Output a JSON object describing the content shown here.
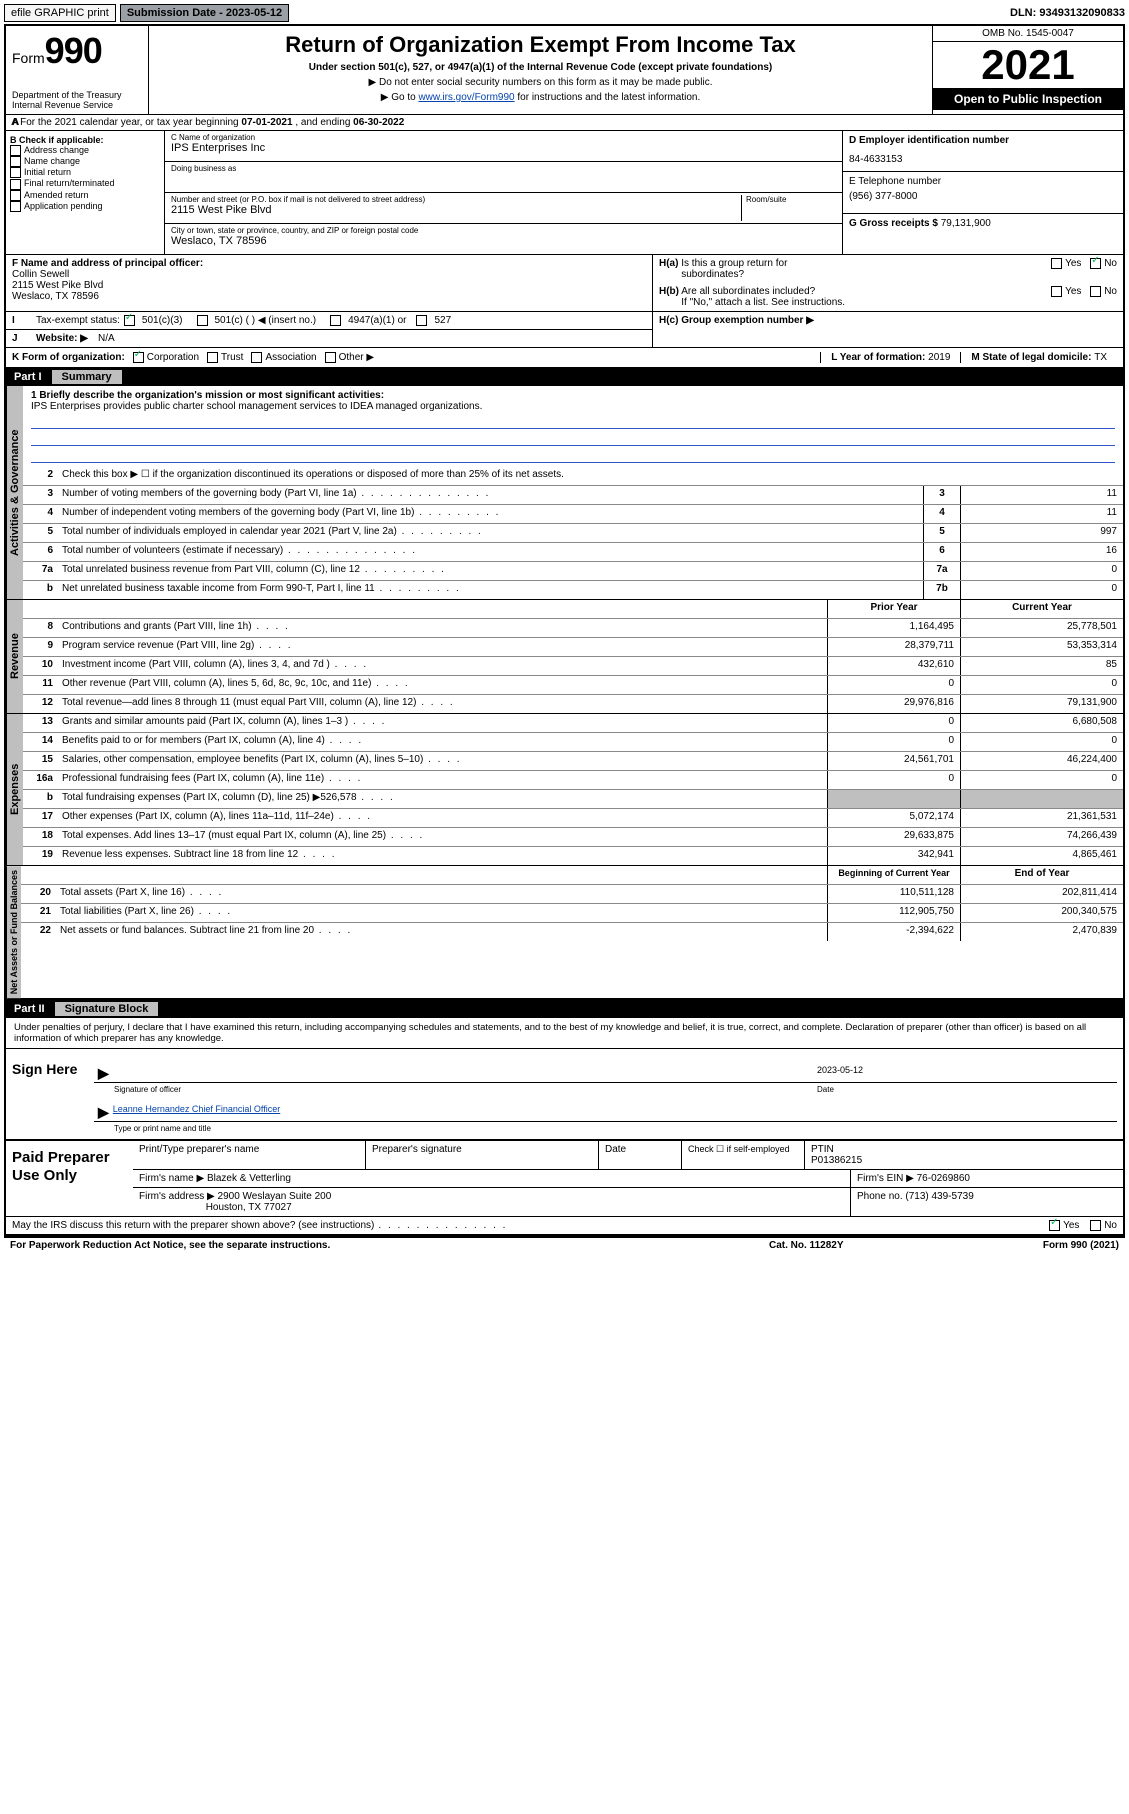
{
  "topbar": {
    "efile": "efile GRAPHIC print",
    "submission_label": "Submission Date - ",
    "submission_date": "2023-05-12",
    "dln_label": "DLN: ",
    "dln": "93493132090833"
  },
  "header": {
    "form_prefix": "Form",
    "form_number": "990",
    "dept": "Department of the Treasury\nInternal Revenue Service",
    "title": "Return of Organization Exempt From Income Tax",
    "subtitle": "Under section 501(c), 527, or 4947(a)(1) of the Internal Revenue Code (except private foundations)",
    "note1": "▶ Do not enter social security numbers on this form as it may be made public.",
    "note2_pre": "▶ Go to ",
    "note2_link": "www.irs.gov/Form990",
    "note2_post": " for instructions and the latest information.",
    "omb": "OMB No. 1545-0047",
    "year": "2021",
    "inspection": "Open to Public Inspection"
  },
  "period": {
    "label_a": "A For the 2021 calendar year, or tax year beginning ",
    "begin": "07-01-2021",
    "mid": " , and ending ",
    "end": "06-30-2022"
  },
  "boxB": {
    "label": "B Check if applicable:",
    "items": [
      "Address change",
      "Name change",
      "Initial return",
      "Final return/terminated",
      "Amended return",
      "Application pending"
    ]
  },
  "boxC": {
    "name_label": "C Name of organization",
    "name": "IPS Enterprises Inc",
    "dba_label": "Doing business as",
    "dba": "",
    "addr_label": "Number and street (or P.O. box if mail is not delivered to street address)",
    "room_label": "Room/suite",
    "addr": "2115 West Pike Blvd",
    "city_label": "City or town, state or province, country, and ZIP or foreign postal code",
    "city": "Weslaco, TX  78596"
  },
  "boxD": {
    "label": "D Employer identification number",
    "value": "84-4633153"
  },
  "boxE": {
    "label": "E Telephone number",
    "value": "(956) 377-8000"
  },
  "boxG": {
    "label": "G Gross receipts $ ",
    "value": "79,131,900"
  },
  "boxF": {
    "label": "F Name and address of principal officer:",
    "name": "Collin Sewell",
    "addr1": "2115 West Pike Blvd",
    "addr2": "Weslaco, TX  78596"
  },
  "boxH": {
    "a_label": "H(a) Is this a group return for subordinates?",
    "a_yes": "Yes",
    "a_no": "No",
    "b_label": "H(b) Are all subordinates included?",
    "b_note": "If \"No,\" attach a list. See instructions.",
    "c_label": "H(c) Group exemption number ▶"
  },
  "lineI": {
    "label": "Tax-exempt status:",
    "opts": [
      "501(c)(3)",
      "501(c) (  ) ◀ (insert no.)",
      "4947(a)(1) or",
      "527"
    ]
  },
  "lineJ": {
    "label": "Website: ▶",
    "value": "N/A"
  },
  "lineK": {
    "label": "K Form of organization:",
    "opts": [
      "Corporation",
      "Trust",
      "Association",
      "Other ▶"
    ],
    "L_label": "L Year of formation: ",
    "L_val": "2019",
    "M_label": "M State of legal domicile: ",
    "M_val": "TX"
  },
  "partI": {
    "tag": "Part I",
    "name": "Summary"
  },
  "mission": {
    "q": "1  Briefly describe the organization's mission or most significant activities:",
    "text": "IPS Enterprises provides public charter school management services to IDEA managed organizations."
  },
  "gov_rows": [
    {
      "n": "2",
      "d": "Check this box ▶ ☐  if the organization discontinued its operations or disposed of more than 25% of its net assets.",
      "k": "",
      "v": ""
    },
    {
      "n": "3",
      "d": "Number of voting members of the governing body (Part VI, line 1a)",
      "k": "3",
      "v": "11",
      "dots": "l"
    },
    {
      "n": "4",
      "d": "Number of independent voting members of the governing body (Part VI, line 1b)",
      "k": "4",
      "v": "11",
      "dots": "m"
    },
    {
      "n": "5",
      "d": "Total number of individuals employed in calendar year 2021 (Part V, line 2a)",
      "k": "5",
      "v": "997",
      "dots": "m"
    },
    {
      "n": "6",
      "d": "Total number of volunteers (estimate if necessary)",
      "k": "6",
      "v": "16",
      "dots": "l"
    },
    {
      "n": "7a",
      "d": "Total unrelated business revenue from Part VIII, column (C), line 12",
      "k": "7a",
      "v": "0",
      "dots": "m"
    },
    {
      "n": "b",
      "d": "Net unrelated business taxable income from Form 990-T, Part I, line 11",
      "k": "7b",
      "v": "0",
      "dots": "m"
    }
  ],
  "rev_hdr": {
    "prior": "Prior Year",
    "current": "Current Year"
  },
  "rev_rows": [
    {
      "n": "8",
      "d": "Contributions and grants (Part VIII, line 1h)",
      "p": "1,164,495",
      "c": "25,778,501"
    },
    {
      "n": "9",
      "d": "Program service revenue (Part VIII, line 2g)",
      "p": "28,379,711",
      "c": "53,353,314"
    },
    {
      "n": "10",
      "d": "Investment income (Part VIII, column (A), lines 3, 4, and 7d )",
      "p": "432,610",
      "c": "85"
    },
    {
      "n": "11",
      "d": "Other revenue (Part VIII, column (A), lines 5, 6d, 8c, 9c, 10c, and 11e)",
      "p": "0",
      "c": "0"
    },
    {
      "n": "12",
      "d": "Total revenue—add lines 8 through 11 (must equal Part VIII, column (A), line 12)",
      "p": "29,976,816",
      "c": "79,131,900"
    }
  ],
  "exp_rows": [
    {
      "n": "13",
      "d": "Grants and similar amounts paid (Part IX, column (A), lines 1–3 )",
      "p": "0",
      "c": "6,680,508"
    },
    {
      "n": "14",
      "d": "Benefits paid to or for members (Part IX, column (A), line 4)",
      "p": "0",
      "c": "0"
    },
    {
      "n": "15",
      "d": "Salaries, other compensation, employee benefits (Part IX, column (A), lines 5–10)",
      "p": "24,561,701",
      "c": "46,224,400"
    },
    {
      "n": "16a",
      "d": "Professional fundraising fees (Part IX, column (A), line 11e)",
      "p": "0",
      "c": "0"
    },
    {
      "n": "b",
      "d": "Total fundraising expenses (Part IX, column (D), line 25) ▶526,578",
      "p": "shade",
      "c": "shade"
    },
    {
      "n": "17",
      "d": "Other expenses (Part IX, column (A), lines 11a–11d, 11f–24e)",
      "p": "5,072,174",
      "c": "21,361,531"
    },
    {
      "n": "18",
      "d": "Total expenses. Add lines 13–17 (must equal Part IX, column (A), line 25)",
      "p": "29,633,875",
      "c": "74,266,439"
    },
    {
      "n": "19",
      "d": "Revenue less expenses. Subtract line 18 from line 12",
      "p": "342,941",
      "c": "4,865,461"
    }
  ],
  "net_hdr": {
    "prior": "Beginning of Current Year",
    "current": "End of Year"
  },
  "net_rows": [
    {
      "n": "20",
      "d": "Total assets (Part X, line 16)",
      "p": "110,511,128",
      "c": "202,811,414"
    },
    {
      "n": "21",
      "d": "Total liabilities (Part X, line 26)",
      "p": "112,905,750",
      "c": "200,340,575"
    },
    {
      "n": "22",
      "d": "Net assets or fund balances. Subtract line 21 from line 20",
      "p": "-2,394,622",
      "c": "2,470,839"
    }
  ],
  "vtabs": {
    "gov": "Activities & Governance",
    "rev": "Revenue",
    "exp": "Expenses",
    "net": "Net Assets or Fund Balances"
  },
  "partII": {
    "tag": "Part II",
    "name": "Signature Block"
  },
  "sig_intro": "Under penalties of perjury, I declare that I have examined this return, including accompanying schedules and statements, and to the best of my knowledge and belief, it is true, correct, and complete. Declaration of preparer (other than officer) is based on all information of which preparer has any knowledge.",
  "sign": {
    "left": "Sign Here",
    "sig_label": "Signature of officer",
    "date_label": "Date",
    "date": "2023-05-12",
    "name": "Leanne Hernandez Chief Financial Officer",
    "name_label": "Type or print name and title"
  },
  "paid": {
    "left": "Paid Preparer Use Only",
    "h1": "Print/Type preparer's name",
    "h2": "Preparer's signature",
    "h3": "Date",
    "h4_pre": "Check ☐ if self-employed",
    "h5": "PTIN",
    "ptin": "P01386215",
    "firm_label": "Firm's name   ▶",
    "firm": "Blazek & Vetterling",
    "ein_label": "Firm's EIN ▶",
    "ein": "76-0269860",
    "addr_label": "Firm's address ▶",
    "addr1": "2900 Weslayan Suite 200",
    "addr2": "Houston, TX  77027",
    "phone_label": "Phone no. ",
    "phone": "(713) 439-5739"
  },
  "may_discuss": "May the IRS discuss this return with the preparer shown above? (see instructions)",
  "footer": {
    "left": "For Paperwork Reduction Act Notice, see the separate instructions.",
    "mid": "Cat. No. 11282Y",
    "right": "Form 990 (2021)"
  },
  "colors": {
    "accent": "#0645ad",
    "shade": "#bfbfbf",
    "check": "#00aa44"
  }
}
